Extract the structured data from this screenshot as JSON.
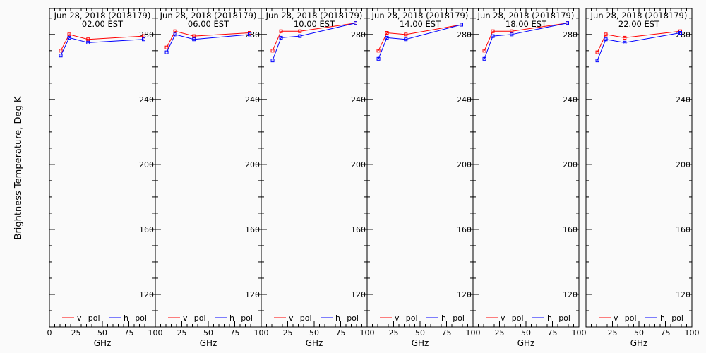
{
  "ylabel": "Brightness Temperature, Deg K",
  "xlabel": "GHz",
  "colors": {
    "v_pol": "#ff0000",
    "h_pol": "#0000ff",
    "axis": "#000000",
    "background": "#fafafa"
  },
  "legend": {
    "position": "bottom",
    "v_label": "v−pol",
    "h_label": "h−pol"
  },
  "chart_data": [
    {
      "type": "line",
      "title": "Jun 28, 2018 (2018179)",
      "subtitle": "02.00 EST",
      "x": [
        10.7,
        18.7,
        36.5,
        89.0
      ],
      "xlim": [
        0,
        100
      ],
      "ylim": [
        100,
        296
      ],
      "xticks": [
        "0",
        "25",
        "50",
        "75",
        "100"
      ],
      "yticks": [
        "120",
        "160",
        "200",
        "240",
        "280"
      ],
      "series": [
        {
          "name": "v−pol",
          "values": [
            270,
            280,
            277,
            279
          ]
        },
        {
          "name": "h−pol",
          "values": [
            267,
            278,
            275,
            277
          ]
        }
      ]
    },
    {
      "type": "line",
      "title": "Jun 28, 2018 (2018179)",
      "subtitle": "06.00 EST",
      "x": [
        10.7,
        18.7,
        36.5,
        89.0
      ],
      "xlim": [
        0,
        100
      ],
      "ylim": [
        100,
        296
      ],
      "xticks": [
        "0",
        "25",
        "50",
        "75",
        "100"
      ],
      "yticks": [
        "120",
        "160",
        "200",
        "240",
        "280"
      ],
      "series": [
        {
          "name": "v−pol",
          "values": [
            272,
            282,
            279,
            281
          ]
        },
        {
          "name": "h−pol",
          "values": [
            269,
            280,
            277,
            280
          ]
        }
      ]
    },
    {
      "type": "line",
      "title": "Jun 28, 2018 (2018179)",
      "subtitle": "10.00 EST",
      "x": [
        10.7,
        18.7,
        36.5,
        89.0
      ],
      "xlim": [
        0,
        100
      ],
      "ylim": [
        100,
        296
      ],
      "xticks": [
        "0",
        "25",
        "50",
        "75",
        "100"
      ],
      "yticks": [
        "120",
        "160",
        "200",
        "240",
        "280"
      ],
      "series": [
        {
          "name": "v−pol",
          "values": [
            270,
            282,
            282,
            287
          ]
        },
        {
          "name": "h−pol",
          "values": [
            264,
            278,
            279,
            287
          ]
        }
      ]
    },
    {
      "type": "line",
      "title": "Jun 28, 2018 (2018179)",
      "subtitle": "14.00 EST",
      "x": [
        10.7,
        18.7,
        36.5,
        89.0
      ],
      "xlim": [
        0,
        100
      ],
      "ylim": [
        100,
        296
      ],
      "xticks": [
        "0",
        "25",
        "50",
        "75",
        "100"
      ],
      "yticks": [
        "120",
        "160",
        "200",
        "240",
        "280"
      ],
      "series": [
        {
          "name": "v−pol",
          "values": [
            270,
            281,
            280,
            286
          ]
        },
        {
          "name": "h−pol",
          "values": [
            265,
            278,
            277,
            286
          ]
        }
      ]
    },
    {
      "type": "line",
      "title": "Jun 28, 2018 (2018179)",
      "subtitle": "18.00 EST",
      "x": [
        10.7,
        18.7,
        36.5,
        89.0
      ],
      "xlim": [
        0,
        100
      ],
      "ylim": [
        100,
        296
      ],
      "xticks": [
        "0",
        "25",
        "50",
        "75",
        "100"
      ],
      "yticks": [
        "120",
        "160",
        "200",
        "240",
        "280"
      ],
      "series": [
        {
          "name": "v−pol",
          "values": [
            270,
            282,
            282,
            287
          ]
        },
        {
          "name": "h−pol",
          "values": [
            265,
            279,
            280,
            287
          ]
        }
      ]
    },
    {
      "type": "line",
      "title": "Jun 28, 2018 (2018179)",
      "subtitle": "22.00 EST",
      "x": [
        10.7,
        18.7,
        36.5,
        89.0
      ],
      "xlim": [
        0,
        100
      ],
      "ylim": [
        100,
        296
      ],
      "xticks": [
        "0",
        "25",
        "50",
        "75",
        "100"
      ],
      "yticks": [
        "120",
        "160",
        "200",
        "240",
        "280"
      ],
      "series": [
        {
          "name": "v−pol",
          "values": [
            269,
            280,
            278,
            282
          ]
        },
        {
          "name": "h−pol",
          "values": [
            264,
            277,
            275,
            281
          ]
        }
      ]
    }
  ]
}
